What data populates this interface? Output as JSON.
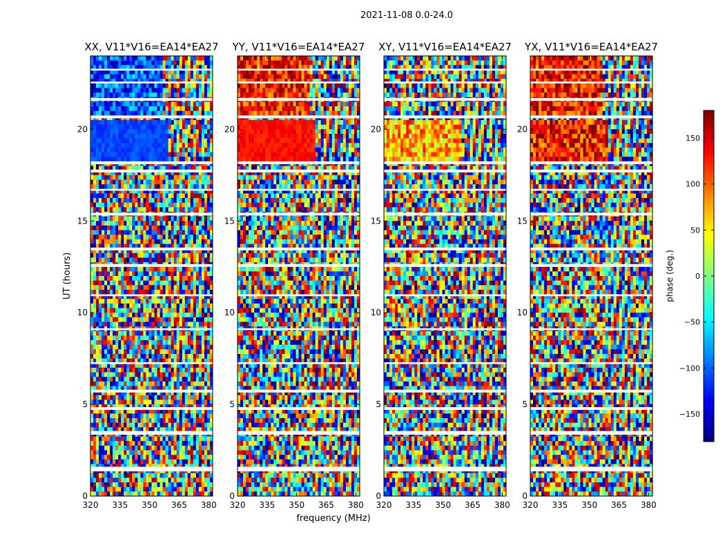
{
  "figure": {
    "suptitle": "2021-11-08 0.0-24.0",
    "xlabel": "frequency (MHz)",
    "ylabel": "UT (hours)"
  },
  "chart_data": {
    "type": "heatmap",
    "title": "2021-11-08 0.0-24.0",
    "xlabel": "frequency (MHz)",
    "ylabel": "UT (hours)",
    "xlim": [
      320,
      382
    ],
    "ylim": [
      0,
      24
    ],
    "xticks": [
      320,
      335,
      350,
      365,
      380
    ],
    "yticks": [
      0,
      5,
      10,
      15,
      20
    ],
    "panels": [
      {
        "id": "xx",
        "title": "XX, V11*V16=EA14*EA27",
        "mean_phase": -110
      },
      {
        "id": "yy",
        "title": "YY, V11*V16=EA14*EA27",
        "mean_phase": 130
      },
      {
        "id": "xy",
        "title": "XY, V11*V16=EA14*EA27",
        "mean_phase": 70
      },
      {
        "id": "yx",
        "title": "YX, V11*V16=EA14*EA27",
        "mean_phase": 130
      }
    ],
    "flagged_ut_bands": [
      [
        1.35,
        1.6
      ],
      [
        3.35,
        3.55
      ],
      [
        4.7,
        4.85
      ],
      [
        5.65,
        5.8
      ],
      [
        7.2,
        7.3
      ],
      [
        9.05,
        9.15
      ],
      [
        10.9,
        11.0
      ],
      [
        12.5,
        12.65
      ],
      [
        13.4,
        13.55
      ],
      [
        15.3,
        15.45
      ],
      [
        16.65,
        16.75
      ],
      [
        17.65,
        17.8
      ],
      [
        18.1,
        18.25
      ],
      [
        20.6,
        20.75
      ],
      [
        21.55,
        21.7
      ],
      [
        22.5,
        22.6
      ],
      [
        23.2,
        23.3
      ]
    ],
    "colorbar": {
      "label": "phase (deg.)",
      "range": [
        -180,
        180
      ],
      "ticks": [
        -150,
        -100,
        -50,
        0,
        50,
        100,
        150
      ],
      "colormap": "jet",
      "colors": [
        "#00007f",
        "#0000ff",
        "#007fff",
        "#00ffff",
        "#7fff7f",
        "#ffff00",
        "#ff7f00",
        "#ff0000",
        "#7f0000"
      ]
    }
  }
}
